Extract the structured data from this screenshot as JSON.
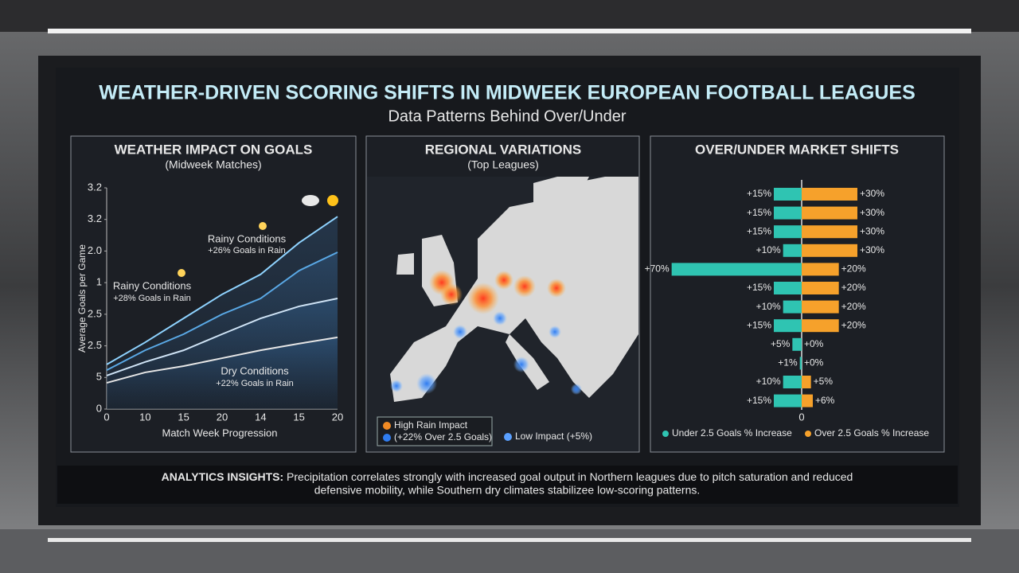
{
  "header": {
    "title": "WEATHER-DRIVEN SCORING SHIFTS IN MIDWEEK EUROPEAN FOOTBALL LEAGUES",
    "subtitle": "Data Patterns Behind Over/Under"
  },
  "chart_data": [
    {
      "type": "line",
      "title": "WEATHER IMPACT ON GOALS",
      "subtitle": "(Midweek Matches)",
      "y_label": "Average Goals per Game",
      "x_label": "Match Week Progression",
      "categories": [
        "0",
        "10",
        "15",
        "20",
        "14",
        "15",
        "20"
      ],
      "series": [
        {
          "color": "#8fd3ff",
          "values": [
            1.41,
            2.11,
            2.87,
            3.63,
            4.26,
            5.26,
            6.09
          ]
        },
        {
          "color": "#5aa9e6",
          "values": [
            1.23,
            1.86,
            2.37,
            3.0,
            3.5,
            4.38,
            4.96
          ]
        },
        {
          "color": "#cfe3f5",
          "values": [
            1.06,
            1.49,
            1.86,
            2.37,
            2.87,
            3.25,
            3.5
          ]
        },
        {
          "color": "#e6e6e6",
          "values": [
            0.83,
            1.16,
            1.36,
            1.61,
            1.86,
            2.07,
            2.27
          ]
        }
      ],
      "ylim": [
        0,
        7
      ],
      "yticks": [
        0,
        {
          "value": 1,
          "label": "5"
        },
        {
          "value": 2,
          "label": "2.5"
        },
        {
          "value": 3,
          "label": "2.5"
        },
        {
          "value": 4,
          "label": "1"
        },
        {
          "value": 5,
          "label": "2.0"
        },
        {
          "value": 6,
          "label": "3.2"
        },
        {
          "value": 7,
          "label": "3.2"
        }
      ],
      "annotations": [
        {
          "title": "Rainy Conditions",
          "text": "+26% Goals in Rain"
        },
        {
          "title": "Rainy Conditions",
          "text": "+28% Goals in Rain"
        },
        {
          "title": "Dry Conditions",
          "text": "+22% Goals in Rain"
        }
      ]
    },
    {
      "type": "bar",
      "orientation": "horizontal",
      "title": "OVER/UNDER MARKET SHIFTS",
      "xlim": [
        0,
        72
      ],
      "xticks": [
        0
      ],
      "series": [
        {
          "name": "Under 2.5 Goals % Increase",
          "color": "#2fc4b2",
          "side": "left",
          "values": [
            15,
            15,
            15,
            10,
            70,
            15,
            10,
            15,
            5,
            1,
            10,
            15
          ],
          "value_labels": [
            "+15%",
            "+15%",
            "+15%",
            "+10%",
            "+70%",
            "+15%",
            "+10%",
            "+15%",
            "+5%",
            "+1%",
            "+10%",
            "+15%"
          ]
        },
        {
          "name": "Over 2.5 Goals % Increase",
          "color": "#f6a12b",
          "side": "right",
          "values": [
            30,
            30,
            30,
            30,
            20,
            20,
            20,
            20,
            0,
            0,
            5,
            6
          ],
          "value_labels": [
            "+30%",
            "+30%",
            "+30%",
            "+30%",
            "+20%",
            "+20%",
            "+20%",
            "+20%",
            "+0%",
            "+0%",
            "+5%",
            "+6%"
          ]
        }
      ]
    }
  ],
  "map": {
    "title": "REGIONAL VARIATIONS",
    "subtitle": "(Top Leagues)",
    "legend": [
      "High Rain Impact",
      "(+22% Over 2.5 Goals)",
      "Low Impact (+5%)"
    ]
  },
  "insights": {
    "label": "ANALYTICS INSIGHTS:",
    "lines": [
      "Precipitation correlates strongly with increased goal output in Northern leagues due to pitch saturation and reduced",
      "defensive mobility, while Southern dry climates stabilizee low-scoring patterns."
    ]
  }
}
